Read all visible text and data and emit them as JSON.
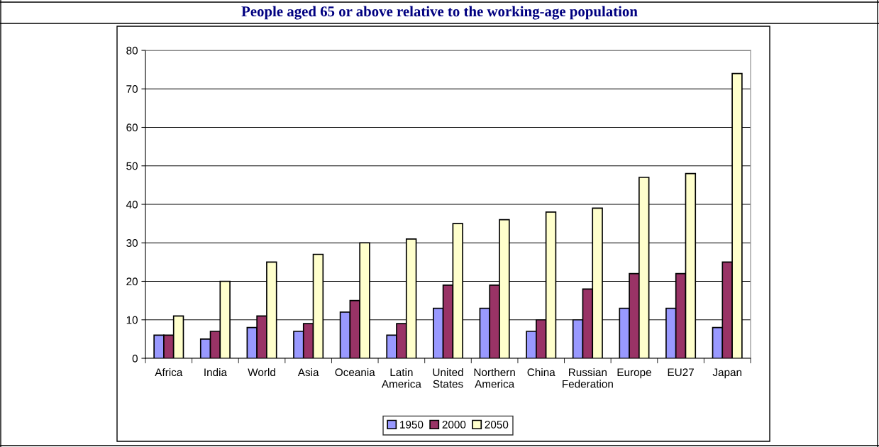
{
  "chart_data": {
    "type": "bar",
    "title": "People aged 65 or above relative to the working-age population",
    "categories": [
      "Africa",
      "India",
      "World",
      "Asia",
      "Oceania",
      "Latin\nAmerica",
      "United\nStates",
      "Northern\nAmerica",
      "China",
      "Russian\nFederation",
      "Europe",
      "EU27",
      "Japan"
    ],
    "series": [
      {
        "name": "1950",
        "color": "#9999ff",
        "values": [
          6,
          5,
          8,
          7,
          12,
          6,
          13,
          13,
          7,
          10,
          13,
          13,
          8
        ]
      },
      {
        "name": "2000",
        "color": "#993366",
        "values": [
          6,
          7,
          11,
          9,
          15,
          9,
          19,
          19,
          10,
          18,
          22,
          22,
          25
        ]
      },
      {
        "name": "2050",
        "color": "#ffffcc",
        "values": [
          11,
          20,
          25,
          27,
          30,
          31,
          35,
          36,
          38,
          39,
          47,
          48,
          74
        ]
      }
    ],
    "ylim": [
      0,
      80
    ],
    "yticks": [
      0,
      10,
      20,
      30,
      40,
      50,
      60,
      70,
      80
    ],
    "grid": "y",
    "legend": "bottom"
  }
}
